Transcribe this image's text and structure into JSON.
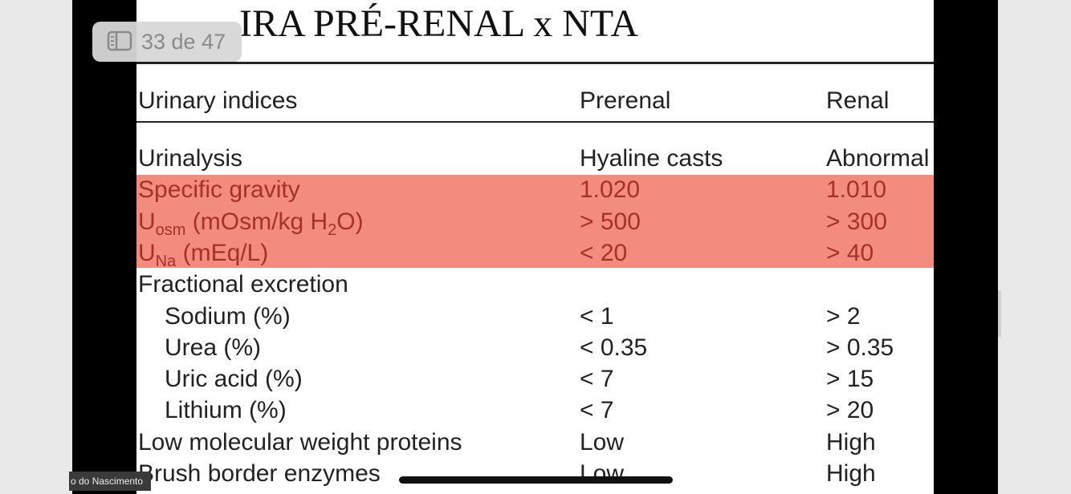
{
  "viewer": {
    "page_indicator": "33 de 47",
    "participant": "o do Nascimento"
  },
  "slide": {
    "title": "IRA PRÉ-RENAL x NTA",
    "table": {
      "header": [
        "Urinary indices",
        "Prerenal",
        "Renal"
      ],
      "rows": [
        {
          "label": [
            {
              "text": "Urinalysis"
            }
          ],
          "cells": [
            "Hyaline casts",
            "Abnormal"
          ]
        },
        {
          "label": [
            {
              "text": "Specific gravity"
            }
          ],
          "cells": [
            "1.020",
            "1.010"
          ],
          "highlight": true
        },
        {
          "label": [
            {
              "text": "U"
            },
            {
              "text": "osm",
              "sub": true
            },
            {
              "text": " (mOsm/kg H"
            },
            {
              "text": "2",
              "sub": true
            },
            {
              "text": "O)"
            }
          ],
          "cells": [
            "> 500",
            "> 300"
          ],
          "highlight": true
        },
        {
          "label": [
            {
              "text": "U"
            },
            {
              "text": "Na",
              "sub": true
            },
            {
              "text": " (mEq/L)"
            }
          ],
          "cells": [
            "< 20",
            "> 40"
          ],
          "highlight": true
        },
        {
          "label": [
            {
              "text": "Fractional excretion"
            }
          ],
          "cells": [
            null,
            null
          ]
        },
        {
          "label": [
            {
              "text": "Sodium (%)"
            }
          ],
          "cells": [
            "< 1",
            "> 2"
          ],
          "indent": true
        },
        {
          "label": [
            {
              "text": "Urea (%)"
            }
          ],
          "cells": [
            "< 0.35",
            "> 0.35"
          ],
          "indent": true
        },
        {
          "label": [
            {
              "text": "Uric acid (%)"
            }
          ],
          "cells": [
            "< 7",
            "> 15"
          ],
          "indent": true
        },
        {
          "label": [
            {
              "text": "Lithium (%)"
            }
          ],
          "cells": [
            "< 7",
            "> 20"
          ],
          "indent": true
        },
        {
          "label": [
            {
              "text": "Low molecular weight proteins"
            }
          ],
          "cells": [
            "Low",
            "High"
          ]
        },
        {
          "label": [
            {
              "text": "Brush border enzymes"
            }
          ],
          "cells": [
            "Low",
            "High"
          ]
        }
      ]
    }
  }
}
